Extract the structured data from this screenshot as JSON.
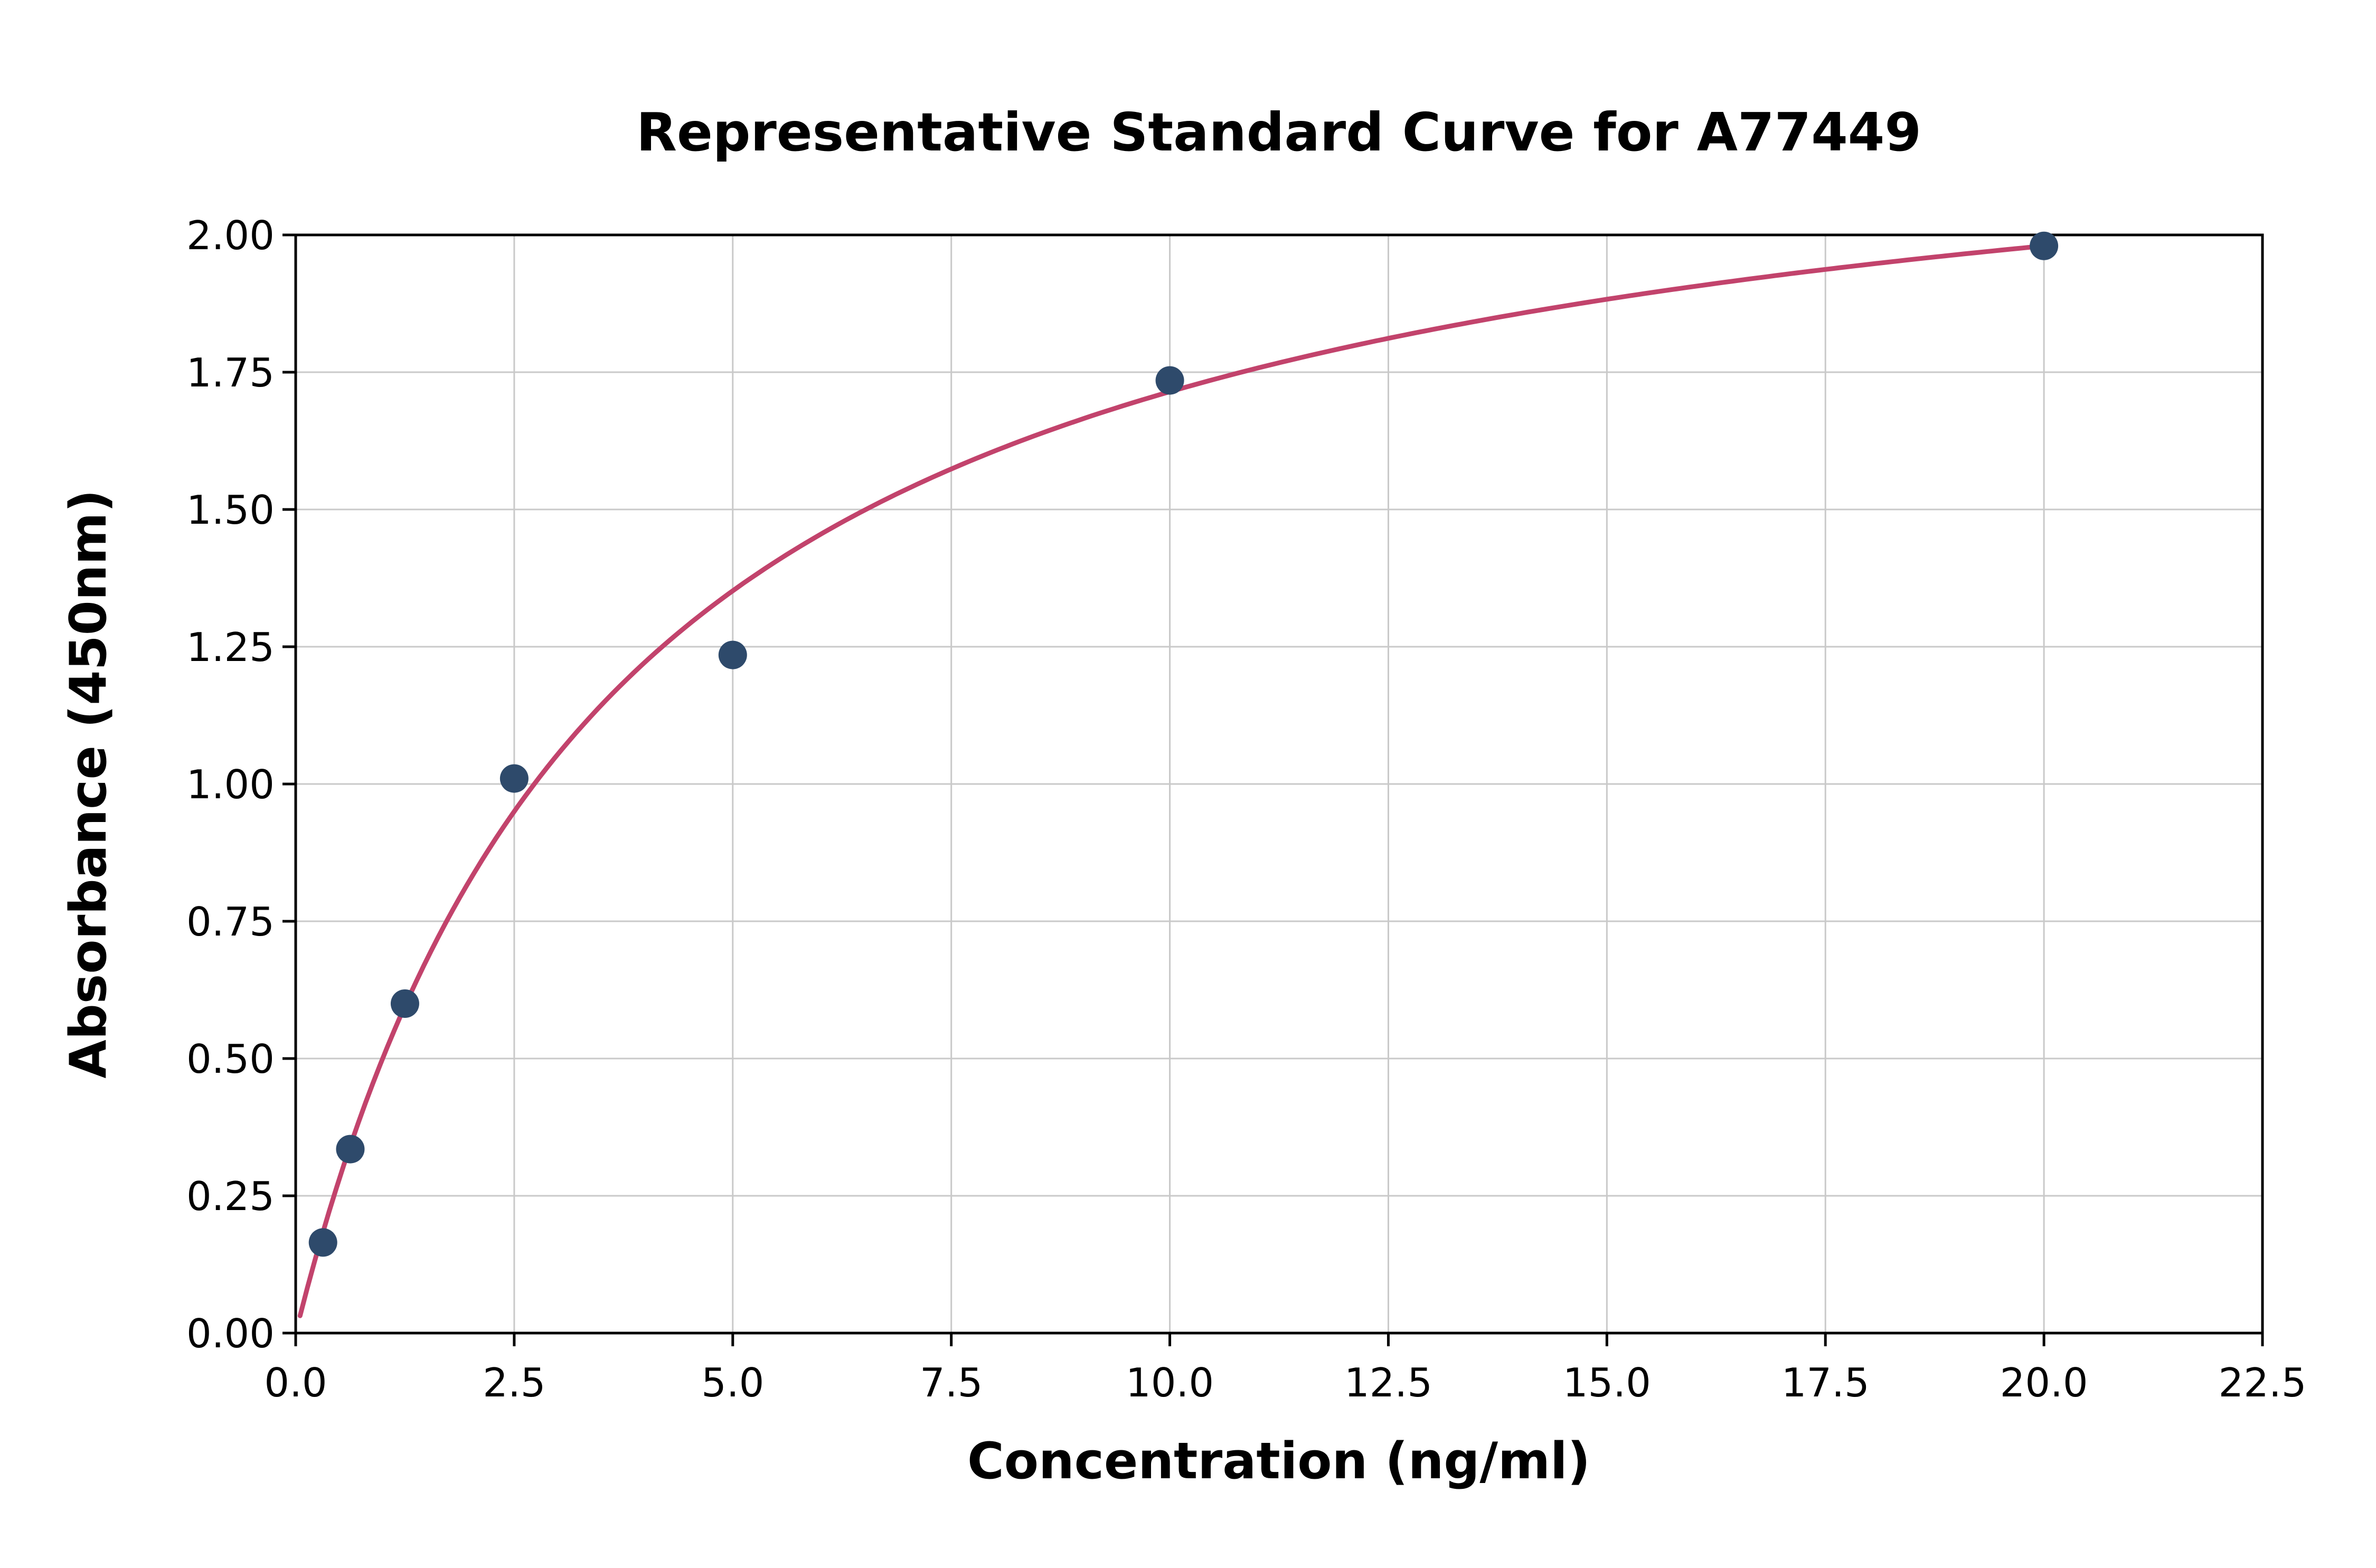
{
  "chart_data": {
    "type": "scatter",
    "title": "Representative Standard Curve for A77449",
    "xlabel": "Concentration (ng/ml)",
    "ylabel": "Absorbance (450nm)",
    "xlim": [
      0,
      22.5
    ],
    "ylim": [
      0,
      2.0
    ],
    "grid": true,
    "x_ticks": [
      0.0,
      2.5,
      5.0,
      7.5,
      10.0,
      12.5,
      15.0,
      17.5,
      20.0,
      22.5
    ],
    "x_tick_labels": [
      "0.0",
      "2.5",
      "5.0",
      "7.5",
      "10.0",
      "12.5",
      "15.0",
      "17.5",
      "20.0",
      "22.5"
    ],
    "y_ticks": [
      0.0,
      0.25,
      0.5,
      0.75,
      1.0,
      1.25,
      1.5,
      1.75,
      2.0
    ],
    "y_tick_labels": [
      "0.00",
      "0.25",
      "0.50",
      "0.75",
      "1.00",
      "1.25",
      "1.50",
      "1.75",
      "2.00"
    ],
    "points": [
      {
        "x": 0.3125,
        "y": 0.165
      },
      {
        "x": 0.625,
        "y": 0.335
      },
      {
        "x": 1.25,
        "y": 0.6
      },
      {
        "x": 2.5,
        "y": 1.01
      },
      {
        "x": 5.0,
        "y": 1.235
      },
      {
        "x": 10.0,
        "y": 1.735
      },
      {
        "x": 20.0,
        "y": 1.98
      }
    ],
    "fit_curve": {
      "model": "michaelis-menten",
      "vmax": 2.343,
      "km": 3.666,
      "x_range": [
        0.05,
        20.0
      ]
    },
    "colors": {
      "point": "#2e4a6b",
      "line": "#c2436c",
      "grid": "#c9c9c9",
      "axis": "#000000",
      "background": "#ffffff",
      "text": "#000000"
    }
  }
}
